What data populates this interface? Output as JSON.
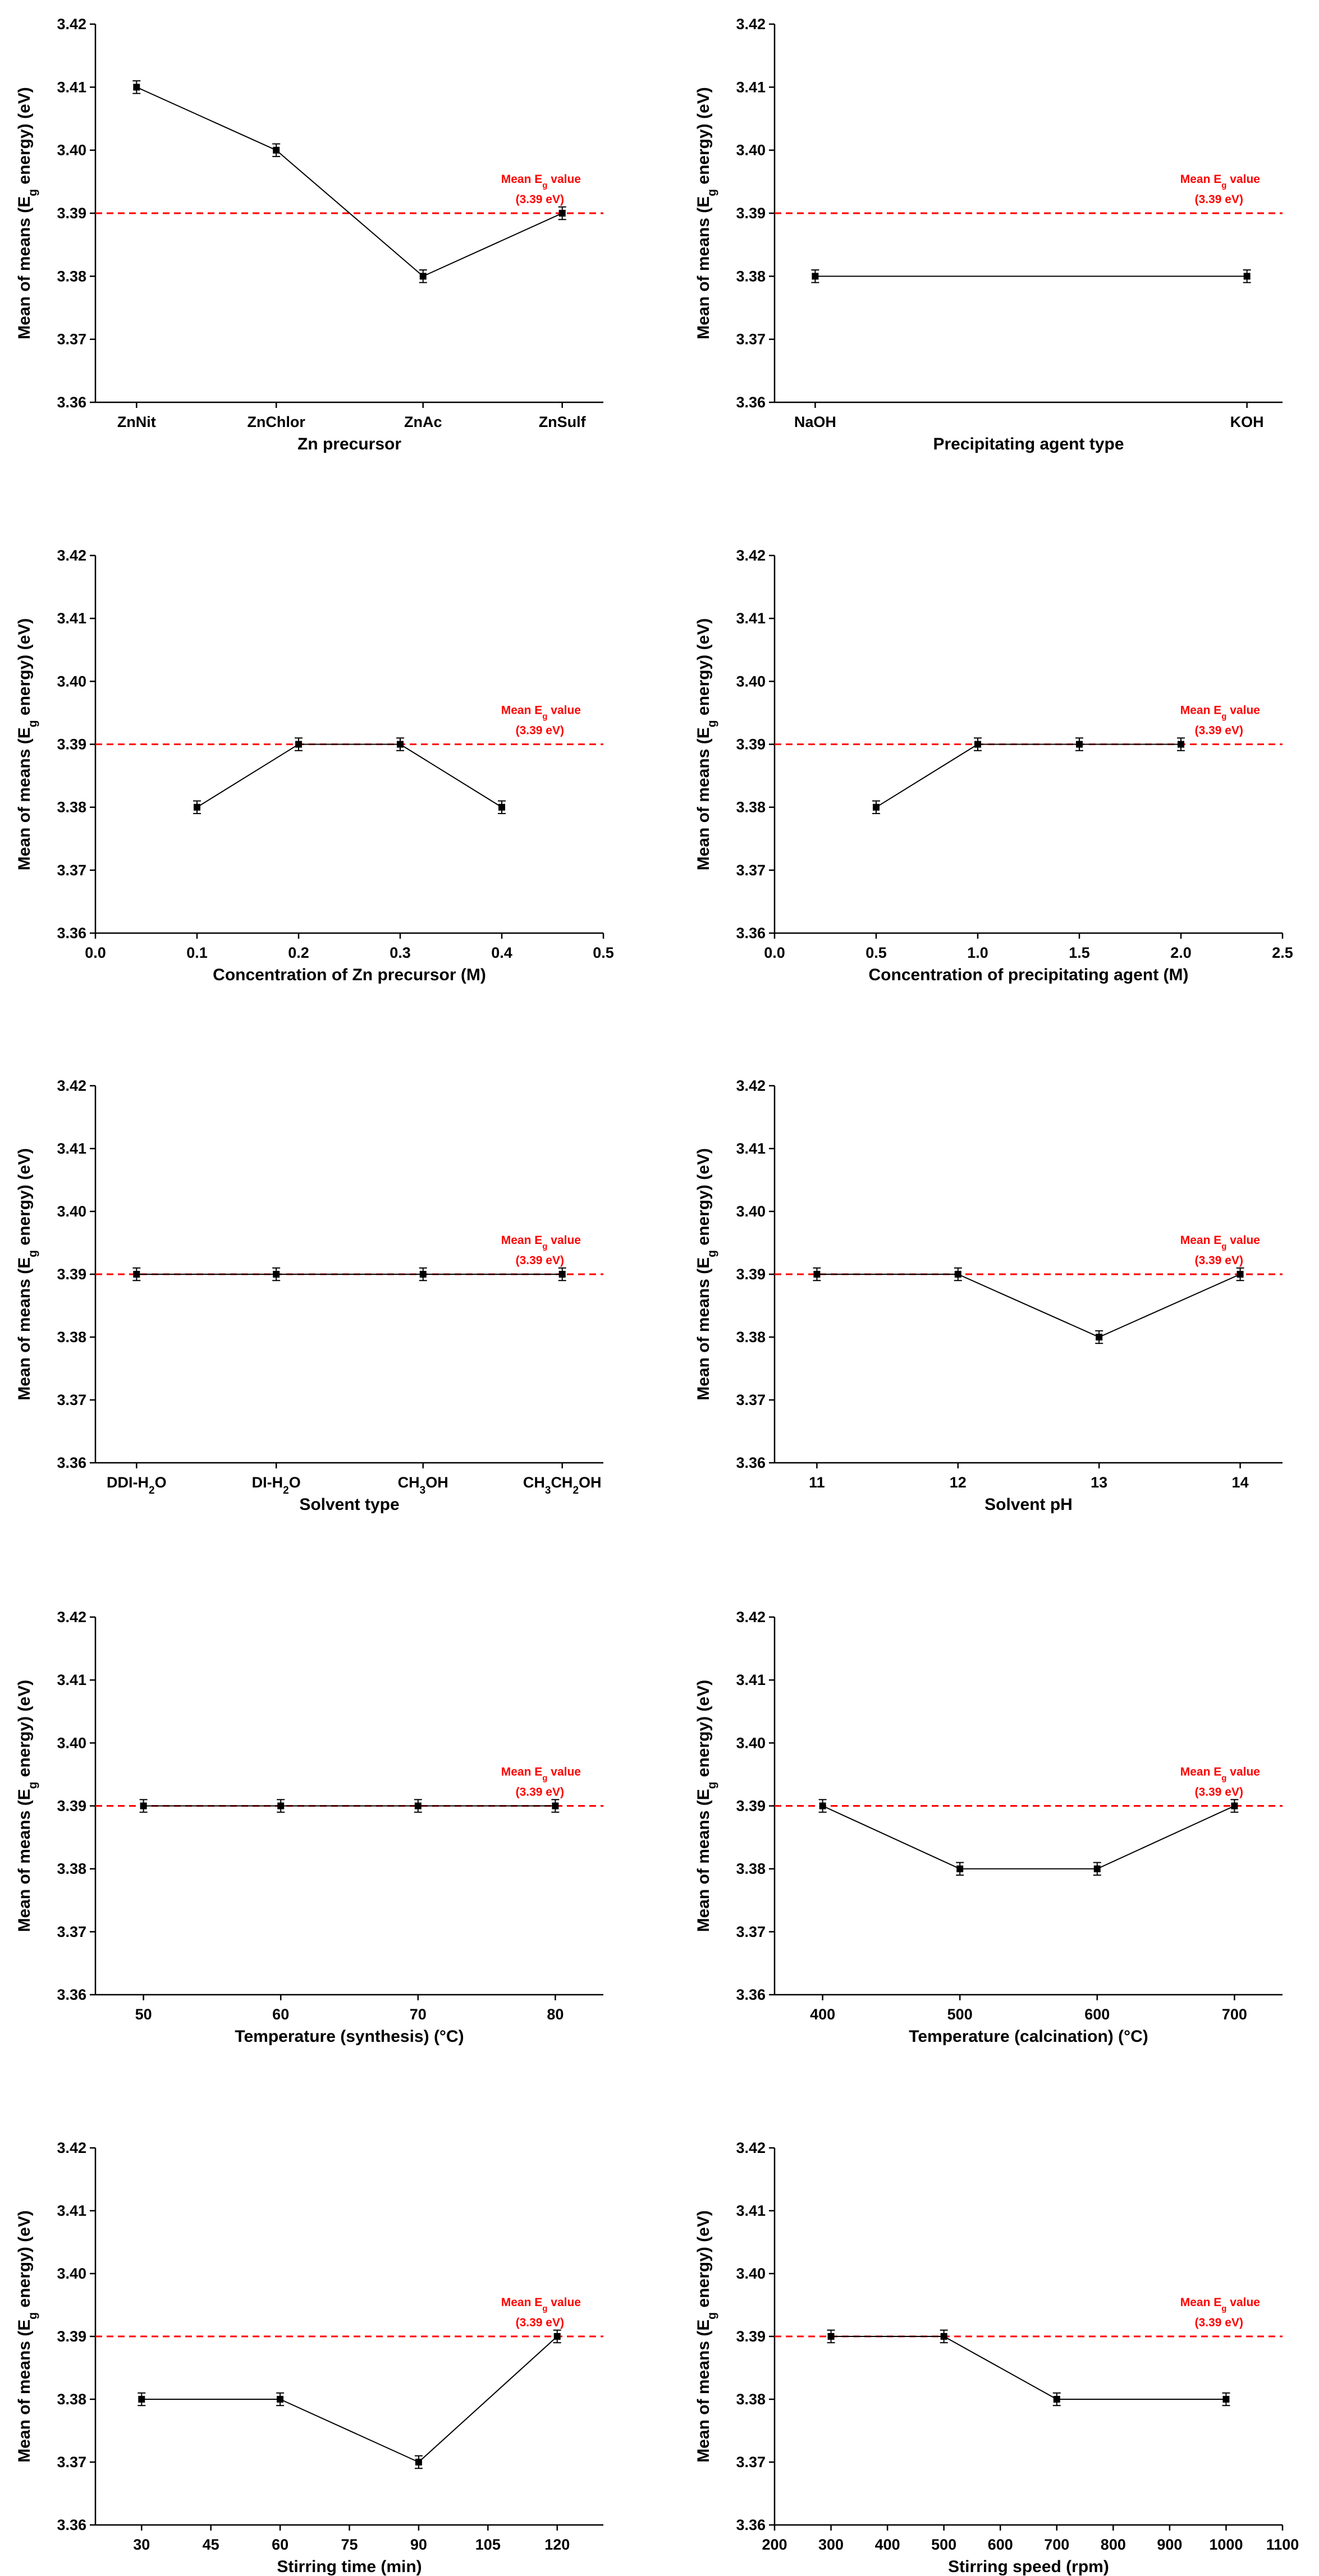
{
  "chart_data": [
    {
      "type": "line",
      "xscale": "category",
      "categories": [
        "ZnNit",
        "ZnChlor",
        "ZnAc",
        "ZnSulf"
      ],
      "values": [
        3.41,
        3.4,
        3.38,
        3.39
      ],
      "error": 0.001,
      "xlabel": "Zn precursor",
      "ylabel": "Mean of means (E_g energy) (eV)",
      "ylim": [
        3.36,
        3.42
      ],
      "yticks": [
        "3.36",
        "3.37",
        "3.38",
        "3.39",
        "3.40",
        "3.41",
        "3.42"
      ],
      "mean_line": {
        "value": 3.39,
        "label_line1": "Mean E",
        "label_sub": "g",
        "label_tail": " value",
        "label_line2": "(3.39 eV)"
      }
    },
    {
      "type": "line",
      "xscale": "category",
      "categories": [
        "NaOH",
        "KOH"
      ],
      "values": [
        3.38,
        3.38
      ],
      "error": 0.001,
      "xlabel": "Precipitating agent type",
      "ylabel": "Mean of means (E_g energy) (eV)",
      "ylim": [
        3.36,
        3.42
      ],
      "yticks": [
        "3.36",
        "3.37",
        "3.38",
        "3.39",
        "3.40",
        "3.41",
        "3.42"
      ],
      "mean_line": {
        "value": 3.39,
        "label_line1": "Mean E",
        "label_sub": "g",
        "label_tail": " value",
        "label_line2": "(3.39 eV)"
      }
    },
    {
      "type": "line",
      "xscale": "numeric",
      "x": [
        0.1,
        0.2,
        0.3,
        0.4
      ],
      "values": [
        3.38,
        3.39,
        3.39,
        3.38
      ],
      "error": 0.001,
      "xlim": [
        0.0,
        0.5
      ],
      "xticks": [
        "0.0",
        "0.1",
        "0.2",
        "0.3",
        "0.4",
        "0.5"
      ],
      "xlabel": "Concentration of Zn precursor (M)",
      "ylabel": "Mean of means (E_g energy) (eV)",
      "ylim": [
        3.36,
        3.42
      ],
      "yticks": [
        "3.36",
        "3.37",
        "3.38",
        "3.39",
        "3.40",
        "3.41",
        "3.42"
      ],
      "mean_line": {
        "value": 3.39,
        "label_line1": "Mean E",
        "label_sub": "g",
        "label_tail": " value",
        "label_line2": "(3.39 eV)"
      }
    },
    {
      "type": "line",
      "xscale": "numeric",
      "x": [
        0.5,
        1.0,
        1.5,
        2.0
      ],
      "values": [
        3.38,
        3.39,
        3.39,
        3.39
      ],
      "error": 0.001,
      "xlim": [
        0.0,
        2.5
      ],
      "xticks": [
        "0.0",
        "0.5",
        "1.0",
        "1.5",
        "2.0",
        "2.5"
      ],
      "xlabel": "Concentration of precipitating agent (M)",
      "ylabel": "Mean of means (E_g energy) (eV)",
      "ylim": [
        3.36,
        3.42
      ],
      "yticks": [
        "3.36",
        "3.37",
        "3.38",
        "3.39",
        "3.40",
        "3.41",
        "3.42"
      ],
      "mean_line": {
        "value": 3.39,
        "label_line1": "Mean E",
        "label_sub": "g",
        "label_tail": " value",
        "label_line2": "(3.39 eV)"
      }
    },
    {
      "type": "line",
      "xscale": "category",
      "categories": [
        "DDI-H2O",
        "DI-H2O",
        "CH3OH",
        "CH3CH2OH"
      ],
      "values": [
        3.39,
        3.39,
        3.39,
        3.39
      ],
      "error": 0.001,
      "xlabel": "Solvent type",
      "ylabel": "Mean of means (E_g energy) (eV)",
      "ylim": [
        3.36,
        3.42
      ],
      "yticks": [
        "3.36",
        "3.37",
        "3.38",
        "3.39",
        "3.40",
        "3.41",
        "3.42"
      ],
      "mean_line": {
        "value": 3.39,
        "label_line1": "Mean E",
        "label_sub": "g",
        "label_tail": " value",
        "label_line2": "(3.39 eV)"
      }
    },
    {
      "type": "line",
      "xscale": "numeric",
      "x": [
        11,
        12,
        13,
        14
      ],
      "values": [
        3.39,
        3.39,
        3.38,
        3.39
      ],
      "error": 0.001,
      "xlim": [
        10.7,
        14.3
      ],
      "xticks": [
        "11",
        "12",
        "13",
        "14"
      ],
      "xlabel": "Solvent pH",
      "ylabel": "Mean of means (E_g energy) (eV)",
      "ylim": [
        3.36,
        3.42
      ],
      "yticks": [
        "3.36",
        "3.37",
        "3.38",
        "3.39",
        "3.40",
        "3.41",
        "3.42"
      ],
      "mean_line": {
        "value": 3.39,
        "label_line1": "Mean E",
        "label_sub": "g",
        "label_tail": " value",
        "label_line2": "(3.39 eV)"
      }
    },
    {
      "type": "line",
      "xscale": "numeric",
      "x": [
        50,
        60,
        70,
        80
      ],
      "values": [
        3.39,
        3.39,
        3.39,
        3.39
      ],
      "error": 0.001,
      "xlim": [
        46.5,
        83.5
      ],
      "xticks": [
        "50",
        "60",
        "70",
        "80"
      ],
      "xlabel": "Temperature (synthesis) (°C)",
      "ylabel": "Mean of means (E_g energy) (eV)",
      "ylim": [
        3.36,
        3.42
      ],
      "yticks": [
        "3.36",
        "3.37",
        "3.38",
        "3.39",
        "3.40",
        "3.41",
        "3.42"
      ],
      "mean_line": {
        "value": 3.39,
        "label_line1": "Mean E",
        "label_sub": "g",
        "label_tail": " value",
        "label_line2": "(3.39 eV)"
      }
    },
    {
      "type": "line",
      "xscale": "numeric",
      "x": [
        400,
        500,
        600,
        700
      ],
      "values": [
        3.39,
        3.38,
        3.38,
        3.39
      ],
      "error": 0.001,
      "xlim": [
        365,
        735
      ],
      "xticks": [
        "400",
        "500",
        "600",
        "700"
      ],
      "xlabel": "Temperature (calcination) (°C)",
      "ylabel": "Mean of means (E_g energy) (eV)",
      "ylim": [
        3.36,
        3.42
      ],
      "yticks": [
        "3.36",
        "3.37",
        "3.38",
        "3.39",
        "3.40",
        "3.41",
        "3.42"
      ],
      "mean_line": {
        "value": 3.39,
        "label_line1": "Mean E",
        "label_sub": "g",
        "label_tail": " value",
        "label_line2": "(3.39 eV)"
      }
    },
    {
      "type": "line",
      "xscale": "numeric",
      "x": [
        30,
        60,
        90,
        120
      ],
      "values": [
        3.38,
        3.38,
        3.37,
        3.39
      ],
      "error": 0.001,
      "xlim": [
        20,
        130
      ],
      "xticks": [
        "30",
        "45",
        "60",
        "75",
        "90",
        "105",
        "120"
      ],
      "xlabel": "Stirring time (min)",
      "ylabel": "Mean of means (E_g energy) (eV)",
      "ylim": [
        3.36,
        3.42
      ],
      "yticks": [
        "3.36",
        "3.37",
        "3.38",
        "3.39",
        "3.40",
        "3.41",
        "3.42"
      ],
      "mean_line": {
        "value": 3.39,
        "label_line1": "Mean E",
        "label_sub": "g",
        "label_tail": " value",
        "label_line2": "(3.39 eV)"
      }
    },
    {
      "type": "line",
      "xscale": "numeric",
      "x": [
        300,
        500,
        700,
        1000
      ],
      "values": [
        3.39,
        3.39,
        3.38,
        3.38
      ],
      "error": 0.001,
      "xlim": [
        200,
        1100
      ],
      "xticks": [
        "200",
        "300",
        "400",
        "500",
        "600",
        "700",
        "800",
        "900",
        "1000",
        "1100"
      ],
      "xlabel": "Stirring speed (rpm)",
      "ylabel": "Mean of means (E_g energy) (eV)",
      "ylim": [
        3.36,
        3.42
      ],
      "yticks": [
        "3.36",
        "3.37",
        "3.38",
        "3.39",
        "3.40",
        "3.41",
        "3.42"
      ],
      "mean_line": {
        "value": 3.39,
        "label_line1": "Mean E",
        "label_sub": "g",
        "label_tail": " value",
        "label_line2": "(3.39 eV)"
      }
    }
  ]
}
